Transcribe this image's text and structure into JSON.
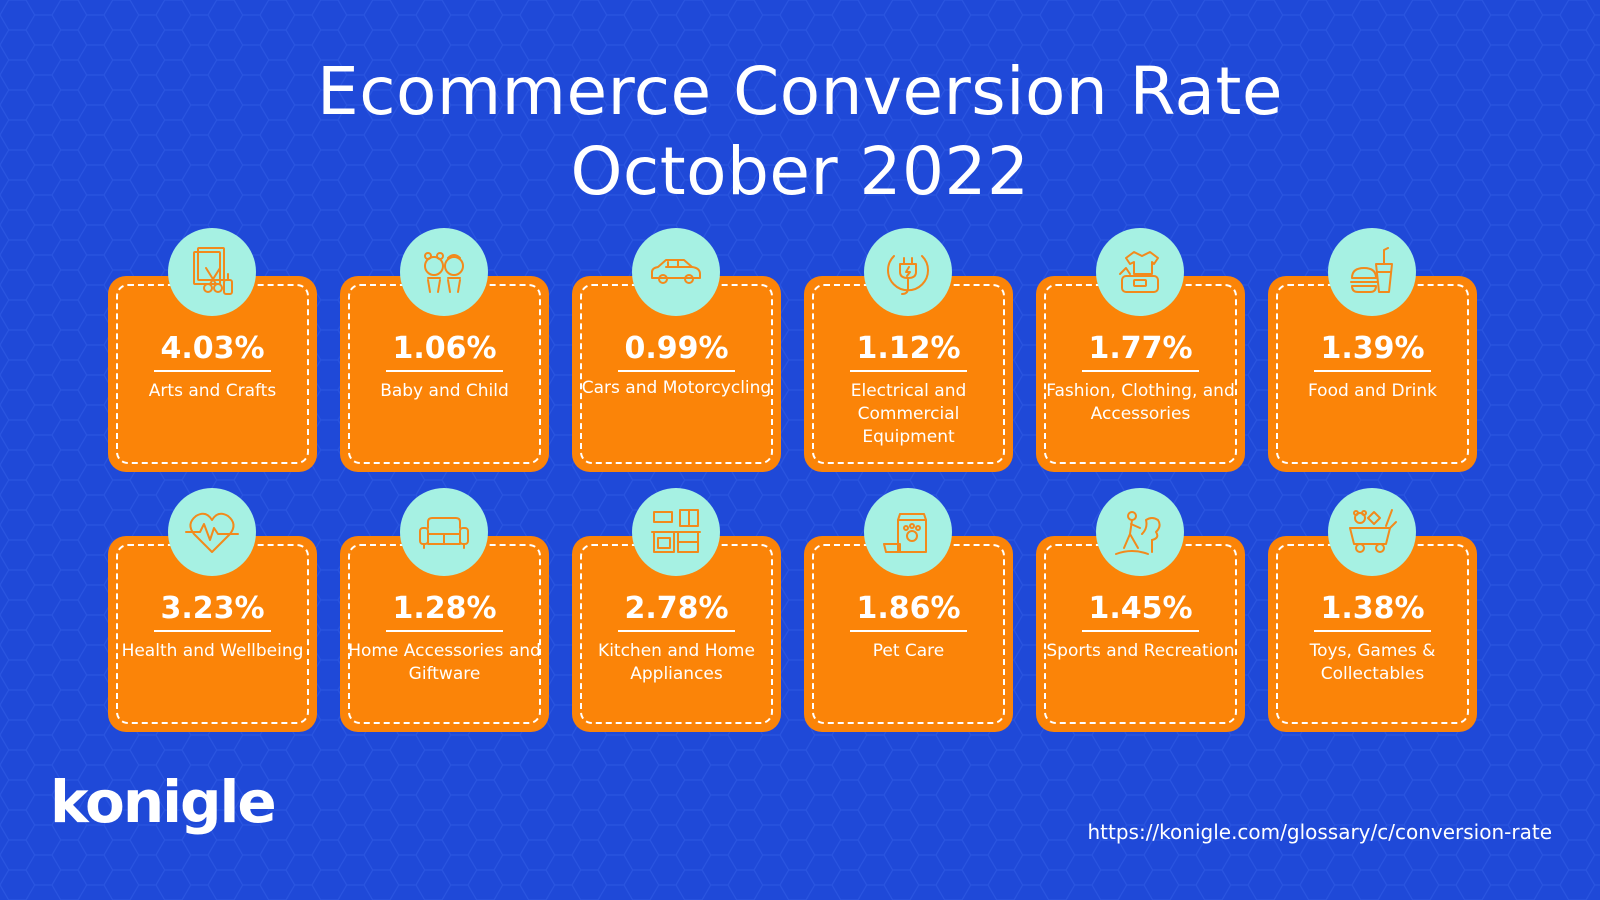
{
  "title": {
    "line1": "Ecommerce Conversion Rate",
    "line2": "October 2022"
  },
  "cards": [
    {
      "value": "4.03%",
      "label": "Arts and Crafts",
      "icon": "arts-crafts-icon"
    },
    {
      "value": "1.06%",
      "label": "Baby and Child",
      "icon": "baby-child-icon"
    },
    {
      "value": "0.99%",
      "label": "Cars and Motorcycling",
      "icon": "car-icon"
    },
    {
      "value": "1.12%",
      "label": "Electrical and Commercial Equipment",
      "icon": "plug-icon"
    },
    {
      "value": "1.77%",
      "label": "Fashion, Clothing, and Accessories",
      "icon": "fashion-icon"
    },
    {
      "value": "1.39%",
      "label": "Food and Drink",
      "icon": "food-drink-icon"
    },
    {
      "value": "3.23%",
      "label": "Health and Wellbeing",
      "icon": "heart-pulse-icon"
    },
    {
      "value": "1.28%",
      "label": "Home Accessories and Giftware",
      "icon": "sofa-icon"
    },
    {
      "value": "2.78%",
      "label": "Kitchen and Home Appliances",
      "icon": "kitchen-icon"
    },
    {
      "value": "1.86%",
      "label": "Pet Care",
      "icon": "pet-food-icon"
    },
    {
      "value": "1.45%",
      "label": "Sports and Recreation",
      "icon": "hiking-icon"
    },
    {
      "value": "1.38%",
      "label": "Toys, Games & Collectables",
      "icon": "toy-wagon-icon"
    }
  ],
  "brand": {
    "logo": "konigle",
    "url": "https://konigle.com/glossary/c/conversion-rate"
  },
  "colors": {
    "background": "#1f49d8",
    "card": "#fb8408",
    "icon_circle": "#a6f1e3",
    "icon_stroke": "#f28a1c"
  }
}
